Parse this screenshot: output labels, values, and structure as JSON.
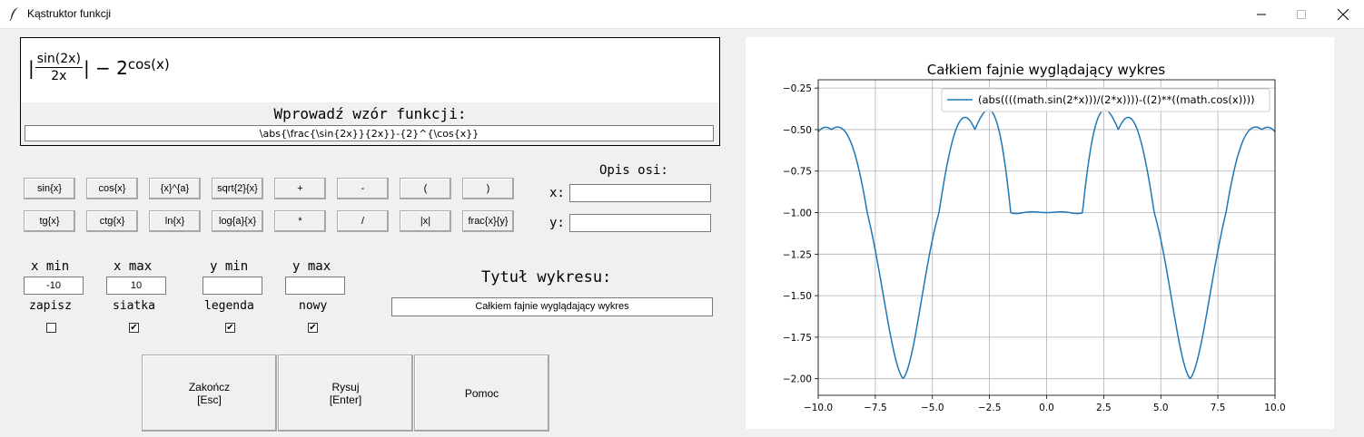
{
  "window": {
    "title": "Kąstruktor funkcji"
  },
  "preview": {
    "formula_prefix": "|",
    "frac_num": "sin(2x)",
    "frac_den": "2x",
    "formula_suffix": "| − 2",
    "formula_exp": "cos(x)"
  },
  "formula_prompt": "Wprowadź wzór funkcji:",
  "formula_value": "\\abs{\\frac{\\sin{2x}}{2x}}-{2}^{\\cos{x}}",
  "buttons_row1": [
    "sin{x}",
    "cos{x}",
    "{x}^{a}",
    "sqrt{2}{x}",
    "+",
    "-",
    "(",
    ")"
  ],
  "buttons_row2": [
    "tg{x}",
    "ctg{x}",
    "ln{x}",
    "log{a}{x}",
    "*",
    "/",
    "|x|",
    "frac{x}{y}"
  ],
  "axis": {
    "header": "Opis osi:",
    "x_label": "x:",
    "y_label": "y:",
    "x_value": "",
    "y_value": ""
  },
  "limits": {
    "xmin_label": "x min",
    "xmax_label": "x max",
    "ymin_label": "y min",
    "ymax_label": "y max",
    "xmin_value": "-10",
    "xmax_value": "10",
    "ymin_value": "",
    "ymax_value": ""
  },
  "options": {
    "zapisz_label": "zapisz",
    "siatka_label": "siatka",
    "legenda_label": "legenda",
    "nowy_label": "nowy",
    "zapisz_checked": false,
    "siatka_checked": true,
    "legenda_checked": true,
    "nowy_checked": true
  },
  "plot_title_label": "Tytuł wykresu:",
  "plot_title_value": "Całkiem fajnie wyglądający wykres",
  "actions": {
    "quit_line1": "Zakończ",
    "quit_line2": "[Esc]",
    "draw_line1": "Rysuj",
    "draw_line2": "[Enter]",
    "help_label": "Pomoc"
  },
  "colors": {
    "line": "#1f77b4",
    "grid": "#b0b0b0"
  },
  "chart_data": {
    "type": "line",
    "title": "Całkiem fajnie wyglądający wykres",
    "xlabel": "",
    "ylabel": "",
    "xlim": [
      -10,
      10
    ],
    "ylim": [
      -2.1,
      -0.2
    ],
    "grid": true,
    "legend_position": "top-right",
    "x_ticks": [
      "−10.0",
      "−7.5",
      "−5.0",
      "−2.5",
      "0.0",
      "2.5",
      "5.0",
      "7.5",
      "10.0"
    ],
    "y_ticks": [
      "−0.25",
      "−0.50",
      "−0.75",
      "−1.00",
      "−1.25",
      "−1.50",
      "−1.75",
      "−2.00"
    ],
    "series": [
      {
        "name": "(abs((((math.sin(2*x)))/(2*x))))-((2)**((math.cos(x))))",
        "function": "abs(sin(2x)/(2x)) - 2^cos(x)"
      }
    ]
  }
}
